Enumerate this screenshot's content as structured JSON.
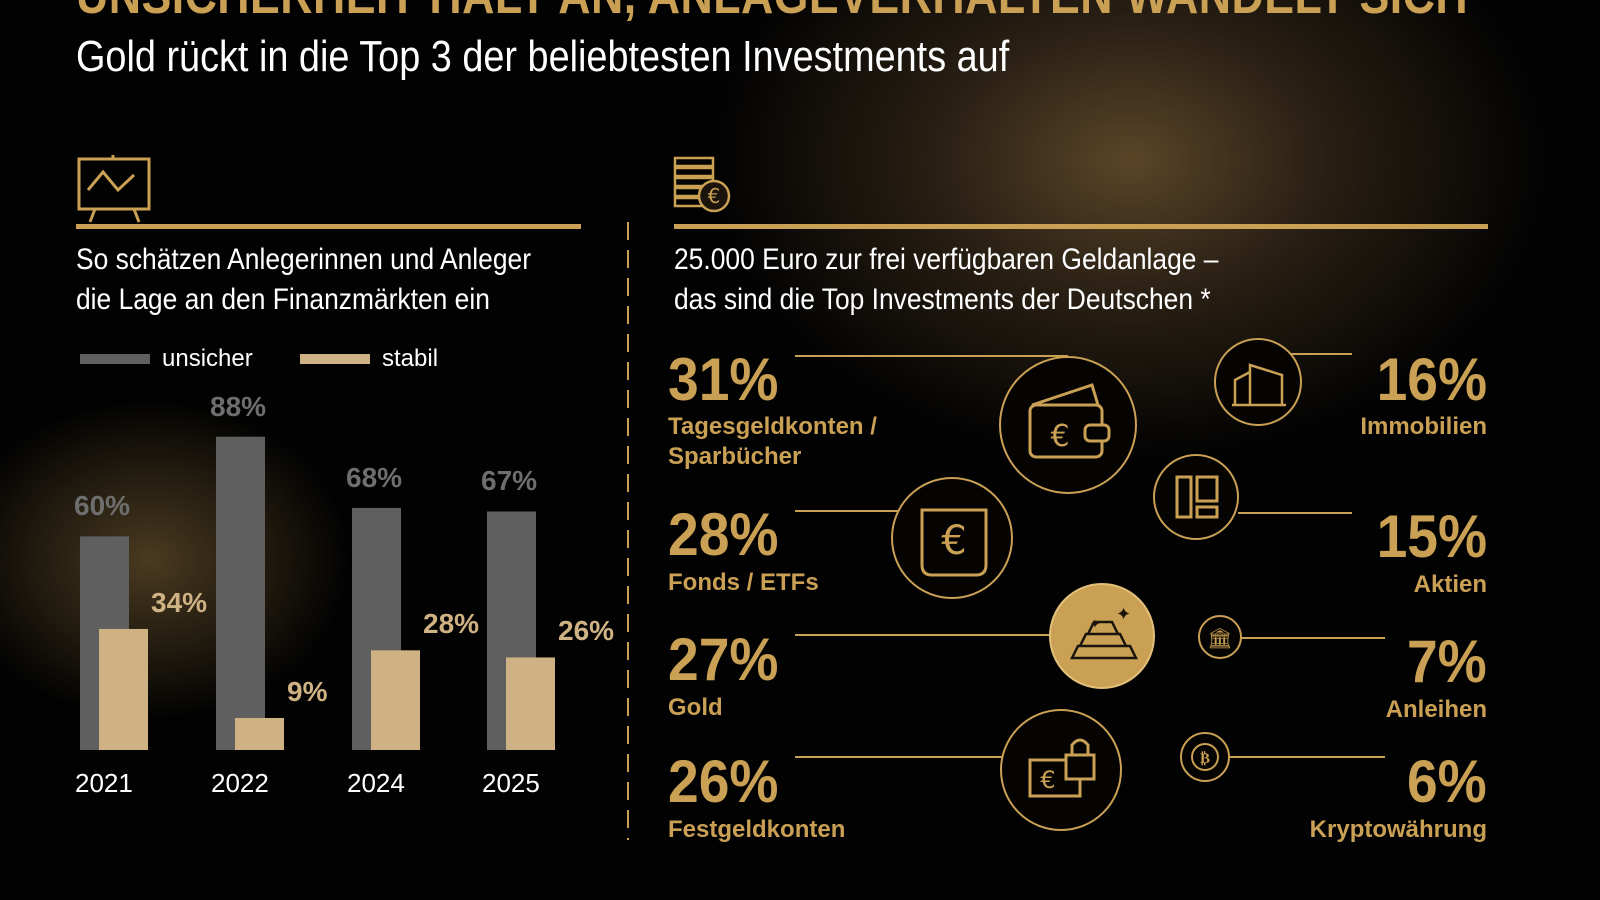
{
  "header": {
    "headline": "UNSICHERHEIT HÄLT AN, ANLAGEVERHALTEN WANDELT SICH",
    "subtitle": "Gold rückt in die Top 3 der beliebtesten Investments auf"
  },
  "left_section": {
    "icon": "chart-presentation-icon",
    "title_line1": "So schätzen Anlegerinnen und Anleger",
    "title_line2": "die Lage an den Finanzmärkten ein"
  },
  "right_section": {
    "icon": "coins-euro-icon",
    "title_line1": "25.000 Euro zur frei verfügbaren Geldanlage –",
    "title_line2": "das sind die Top Investments der Deutschen *"
  },
  "colors": {
    "gold": "#c9a054",
    "unsicher": "#5f5f5f",
    "stabil": "#cfb283"
  },
  "chart_data": {
    "type": "bar",
    "categories": [
      "2021",
      "2022",
      "2024",
      "2025"
    ],
    "series": [
      {
        "name": "unsicher",
        "values": [
          60,
          88,
          68,
          67
        ],
        "labels": [
          "60%",
          "88%",
          "68%",
          "67%"
        ]
      },
      {
        "name": "stabil",
        "values": [
          34,
          9,
          28,
          26
        ],
        "labels": [
          "34%",
          "9%",
          "28%",
          "26%"
        ]
      }
    ],
    "ylim": [
      0,
      100
    ],
    "grid": false,
    "legend": "top-left"
  },
  "investments": {
    "left": [
      {
        "pct": "31%",
        "label1": "Tagesgeldkonten /",
        "label2": "Sparbücher",
        "value": 31,
        "icon": "wallet-euro-icon"
      },
      {
        "pct": "28%",
        "label1": "Fonds / ETFs",
        "label2": "",
        "value": 28,
        "icon": "euro-shield-icon"
      },
      {
        "pct": "27%",
        "label1": "Gold",
        "label2": "",
        "value": 27,
        "icon": "gold-bars-icon"
      },
      {
        "pct": "26%",
        "label1": "Festgeldkonten",
        "label2": "",
        "value": 26,
        "icon": "locked-euro-icon"
      }
    ],
    "right": [
      {
        "pct": "16%",
        "label1": "Immobilien",
        "value": 16,
        "icon": "buildings-icon"
      },
      {
        "pct": "15%",
        "label1": "Aktien",
        "value": 15,
        "icon": "stock-panels-icon"
      },
      {
        "pct": "7%",
        "label1": "Anleihen",
        "value": 7,
        "icon": "bank-icon"
      },
      {
        "pct": "6%",
        "label1": "Kryptowährung",
        "value": 6,
        "icon": "bitcoin-icon"
      }
    ]
  }
}
